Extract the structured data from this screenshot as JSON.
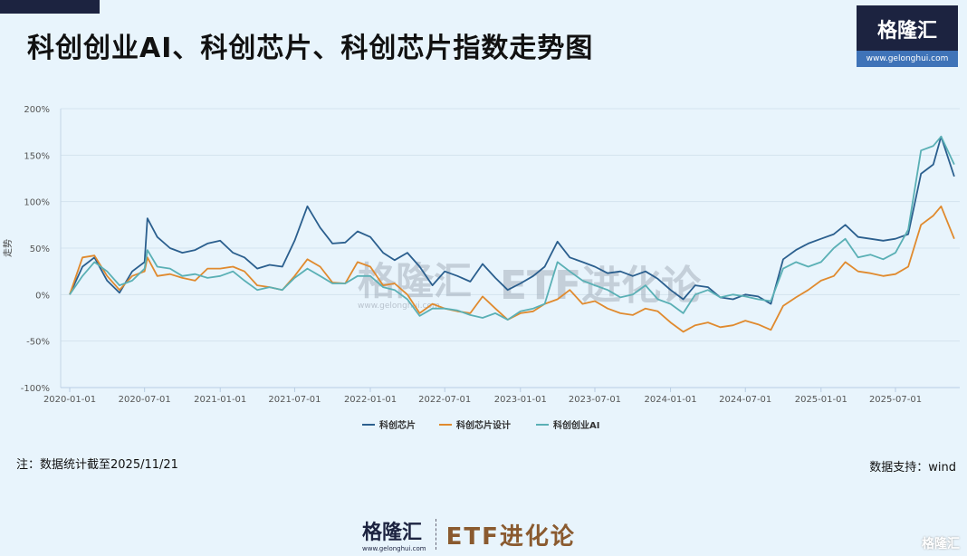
{
  "title": "科创创业AI、科创芯片、科创芯片指数走势图",
  "logo": {
    "name": "格隆汇",
    "url": "www.gelonghui.com"
  },
  "watermark": {
    "brand": "格隆汇",
    "url": "www.gelonghui.com",
    "text": "ETF进化论"
  },
  "note": "注：数据统计截至2025/11/21",
  "source": "数据支持：wind",
  "bottom": {
    "brand": "格隆汇",
    "url": "www.gelonghui.com",
    "column": "ETF进化论",
    "corner": "格隆汇"
  },
  "colors": {
    "background": "#e8f4fc",
    "grid": "#d3e3ef"
  },
  "chart_data": {
    "type": "line",
    "title": "",
    "xlabel": "",
    "ylabel": "走势",
    "ylim": [
      -100,
      200
    ],
    "yticks": [
      "-100%",
      "-50%",
      "0%",
      "50%",
      "100%",
      "150%",
      "200%"
    ],
    "ytick_values": [
      -100,
      -50,
      0,
      50,
      100,
      150,
      200
    ],
    "xticks": [
      "2020-01-01",
      "2020-07-01",
      "2021-01-01",
      "2021-07-01",
      "2022-01-01",
      "2022-07-01",
      "2023-01-01",
      "2023-07-01",
      "2024-01-01",
      "2024-07-01",
      "2025-01-01",
      "2025-07-01"
    ],
    "grid": true,
    "legend": "bottom",
    "x": [
      "2020-01-01",
      "2020-02-01",
      "2020-03-01",
      "2020-04-01",
      "2020-05-01",
      "2020-06-01",
      "2020-07-01",
      "2020-07-08",
      "2020-08-01",
      "2020-09-01",
      "2020-10-01",
      "2020-11-01",
      "2020-12-01",
      "2021-01-01",
      "2021-02-01",
      "2021-03-01",
      "2021-04-01",
      "2021-05-01",
      "2021-06-01",
      "2021-07-01",
      "2021-08-01",
      "2021-09-01",
      "2021-10-01",
      "2021-11-01",
      "2021-12-01",
      "2022-01-01",
      "2022-02-01",
      "2022-03-01",
      "2022-04-01",
      "2022-05-01",
      "2022-06-01",
      "2022-07-01",
      "2022-08-01",
      "2022-09-01",
      "2022-10-01",
      "2022-11-01",
      "2022-12-01",
      "2023-01-01",
      "2023-02-01",
      "2023-03-01",
      "2023-04-01",
      "2023-05-01",
      "2023-06-01",
      "2023-07-01",
      "2023-08-01",
      "2023-09-01",
      "2023-10-01",
      "2023-11-01",
      "2023-12-01",
      "2024-01-01",
      "2024-02-01",
      "2024-03-01",
      "2024-04-01",
      "2024-05-01",
      "2024-06-01",
      "2024-07-01",
      "2024-08-01",
      "2024-09-01",
      "2024-10-01",
      "2024-11-01",
      "2024-12-01",
      "2025-01-01",
      "2025-02-01",
      "2025-03-01",
      "2025-04-01",
      "2025-05-01",
      "2025-06-01",
      "2025-07-01",
      "2025-08-01",
      "2025-09-01",
      "2025-10-01",
      "2025-10-20",
      "2025-11-21"
    ],
    "series": [
      {
        "name": "科创芯片",
        "color": "#2b5f8e",
        "values": [
          0,
          30,
          40,
          15,
          2,
          25,
          35,
          82,
          62,
          50,
          45,
          48,
          55,
          58,
          45,
          40,
          28,
          32,
          30,
          58,
          95,
          72,
          55,
          56,
          68,
          62,
          45,
          37,
          45,
          30,
          10,
          25,
          20,
          14,
          33,
          18,
          5,
          12,
          20,
          30,
          57,
          40,
          35,
          30,
          23,
          25,
          20,
          25,
          17,
          5,
          -5,
          10,
          8,
          -3,
          -5,
          0,
          -2,
          -10,
          38,
          48,
          55,
          60,
          65,
          75,
          62,
          60,
          58,
          60,
          65,
          130,
          140,
          170,
          127
        ]
      },
      {
        "name": "科创芯片设计",
        "color": "#e08a2e",
        "values": [
          0,
          40,
          42,
          20,
          5,
          20,
          25,
          40,
          20,
          22,
          18,
          15,
          28,
          28,
          30,
          25,
          10,
          8,
          5,
          20,
          38,
          30,
          13,
          12,
          35,
          30,
          10,
          12,
          0,
          -20,
          -10,
          -15,
          -18,
          -20,
          -2,
          -15,
          -27,
          -20,
          -18,
          -10,
          -5,
          5,
          -10,
          -7,
          -15,
          -20,
          -22,
          -15,
          -18,
          -30,
          -40,
          -33,
          -30,
          -35,
          -33,
          -28,
          -32,
          -38,
          -12,
          -3,
          5,
          15,
          20,
          35,
          25,
          23,
          20,
          22,
          30,
          75,
          85,
          95,
          60
        ]
      },
      {
        "name": "科创创业AI",
        "color": "#5ab0b5",
        "values": [
          0,
          20,
          35,
          25,
          10,
          15,
          28,
          48,
          30,
          28,
          20,
          22,
          18,
          20,
          25,
          15,
          5,
          8,
          5,
          18,
          28,
          20,
          12,
          12,
          20,
          20,
          8,
          5,
          -5,
          -23,
          -15,
          -15,
          -17,
          -22,
          -25,
          -20,
          -27,
          -18,
          -15,
          -10,
          35,
          25,
          15,
          10,
          5,
          -3,
          0,
          10,
          -5,
          -10,
          -20,
          0,
          5,
          -3,
          0,
          -2,
          -5,
          -7,
          28,
          35,
          30,
          35,
          50,
          60,
          40,
          43,
          38,
          45,
          70,
          155,
          160,
          170,
          140
        ]
      }
    ]
  }
}
